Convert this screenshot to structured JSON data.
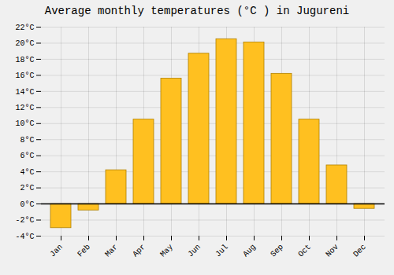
{
  "chart_data": {
    "type": "bar",
    "title": "Average monthly temperatures (°C ) in Jugureni",
    "categories": [
      "Jan",
      "Feb",
      "Mar",
      "Apr",
      "May",
      "Jun",
      "Jul",
      "Aug",
      "Sep",
      "Oct",
      "Nov",
      "Dec"
    ],
    "values": [
      -3.0,
      -0.8,
      4.2,
      10.5,
      15.6,
      18.7,
      20.5,
      20.1,
      16.2,
      10.5,
      4.8,
      -0.6
    ],
    "color": "#FFC020",
    "ylim": [
      -4,
      22
    ],
    "yticks": [
      {
        "value": -4,
        "label": "-4°C"
      },
      {
        "value": -2,
        "label": "-2°C"
      },
      {
        "value": 0,
        "label": "0°C"
      },
      {
        "value": 2,
        "label": "2°C"
      },
      {
        "value": 4,
        "label": "4°C"
      },
      {
        "value": 6,
        "label": "6°C"
      },
      {
        "value": 8,
        "label": "8°C"
      },
      {
        "value": 10,
        "label": "10°C"
      },
      {
        "value": 12,
        "label": "12°C"
      },
      {
        "value": 14,
        "label": "14°C"
      },
      {
        "value": 16,
        "label": "16°C"
      },
      {
        "value": 18,
        "label": "18°C"
      },
      {
        "value": 20,
        "label": "20°C"
      },
      {
        "value": 22,
        "label": "22°C"
      }
    ],
    "grid": true
  }
}
